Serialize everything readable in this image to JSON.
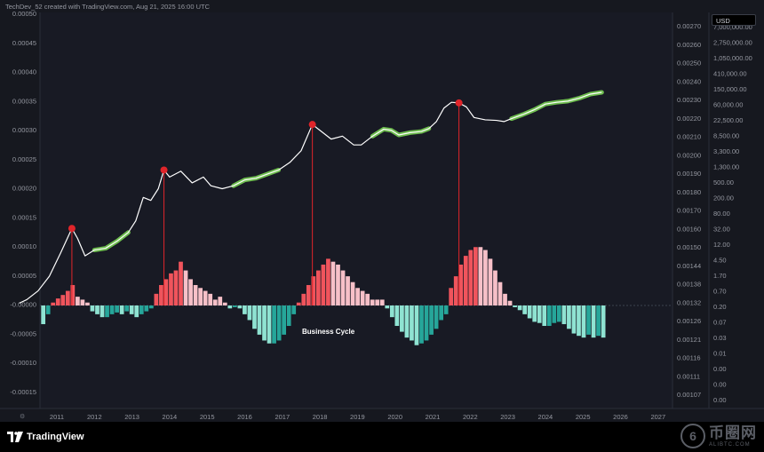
{
  "header": {
    "created_text": "TechDev_52 created with TradingView.com, Aug 21, 2025 16:00 UTC"
  },
  "currency_tag": "USD",
  "footer": {
    "logo_text": "TradingView",
    "watermark_main": "币圈网",
    "watermark_sub": "ALIBTC.COM"
  },
  "chart_data": {
    "type": "bar",
    "x_ticks": [
      "2011",
      "2012",
      "2013",
      "2014",
      "2015",
      "2016",
      "2017",
      "2018",
      "2019",
      "2020",
      "2021",
      "2022",
      "2023",
      "2024",
      "2025",
      "2026",
      "2027"
    ],
    "left_axis": {
      "labels": [
        "0.00050",
        "0.00045",
        "0.00040",
        "0.00035",
        "0.00030",
        "0.00025",
        "0.00020",
        "0.00015",
        "0.00010",
        "0.00005",
        "-0.00000",
        "-0.00005",
        "-0.00010",
        "-0.00015"
      ],
      "ylim": [
        -0.0002,
        0.0005
      ]
    },
    "mid_axis": {
      "labels": [
        "0.00270",
        "0.00260",
        "0.00250",
        "0.00240",
        "0.00230",
        "0.00220",
        "0.00210",
        "0.00200",
        "0.00190",
        "0.00180",
        "0.00170",
        "0.00160",
        "0.00150",
        "0.00144",
        "0.00138",
        "0.00132",
        "0.00126",
        "0.00121",
        "0.00116",
        "0.00111",
        "0.00107"
      ]
    },
    "right_axis": {
      "labels": [
        "7,000,000.00",
        "2,750,000.00",
        "1,050,000.00",
        "410,000.00",
        "150,000.00",
        "60,000.00",
        "22,500.00",
        "8,500.00",
        "3,300.00",
        "1,300.00",
        "500.00",
        "200.00",
        "80.00",
        "32.00",
        "12.00",
        "4.50",
        "1.70",
        "0.70",
        "0.20",
        "0.07",
        "0.03",
        "0.01",
        "0.00",
        "0.00",
        "0.00"
      ]
    },
    "annotation": "Business Cycle",
    "colors": {
      "peak_bar": "#f0545c",
      "post_peak_bar": "#f7c0c8",
      "negative_bar": "#26a69a",
      "negative_light": "#8fe3d2",
      "price_line": "#ffffff",
      "highlight": "#7ed957",
      "peak_marker": "#e0252a"
    },
    "histogram": [
      -3.2e-05,
      -1.5e-05,
      5e-06,
      1.2e-05,
      1.8e-05,
      2.5e-05,
      3.5e-05,
      1.5e-05,
      1e-05,
      5e-06,
      -1e-05,
      -1.5e-05,
      -2e-05,
      -2e-05,
      -1.5e-05,
      -1.2e-05,
      -1.5e-05,
      -1e-05,
      -1.5e-05,
      -2e-05,
      -1.5e-05,
      -1e-05,
      -5e-06,
      2e-05,
      3.5e-05,
      4.5e-05,
      5.5e-05,
      6e-05,
      7.5e-05,
      6e-05,
      4.5e-05,
      3.5e-05,
      3e-05,
      2.5e-05,
      2e-05,
      1e-05,
      1.5e-05,
      5e-06,
      -5e-06,
      -3e-06,
      -5e-06,
      -1.5e-05,
      -2.5e-05,
      -4e-05,
      -5e-05,
      -6e-05,
      -6.5e-05,
      -6.5e-05,
      -6e-05,
      -5e-05,
      -3.5e-05,
      -1.5e-05,
      5e-06,
      2e-05,
      3.5e-05,
      5e-05,
      6e-05,
      7e-05,
      8e-05,
      7.5e-05,
      7e-05,
      6e-05,
      5e-05,
      4e-05,
      3e-05,
      2.5e-05,
      2e-05,
      1e-05,
      1e-05,
      1e-05,
      -5e-06,
      -2e-05,
      -3.5e-05,
      -4.5e-05,
      -5.5e-05,
      -6e-05,
      -6.8e-05,
      -6.5e-05,
      -6e-05,
      -5e-05,
      -4e-05,
      -2.5e-05,
      -1.5e-05,
      3e-05,
      5e-05,
      7e-05,
      8.5e-05,
      9.5e-05,
      0.0001,
      0.0001,
      9.5e-05,
      8e-05,
      6e-05,
      4e-05,
      2e-05,
      8e-06,
      -3e-06,
      -8e-06,
      -1.5e-05,
      -2.2e-05,
      -2.8e-05,
      -3e-05,
      -3.5e-05,
      -3.5e-05,
      -3e-05,
      -2.8e-05,
      -3.2e-05,
      -4e-05,
      -4.8e-05,
      -5.2e-05,
      -5.5e-05,
      -5e-05,
      -5.5e-05,
      -5.2e-05,
      -5.5e-05
    ],
    "peak_markers": [
      {
        "year": 2011.4,
        "left_value": 0.000132
      },
      {
        "year": 2013.85,
        "left_value": 0.000232
      },
      {
        "year": 2017.8,
        "left_value": 0.00031
      },
      {
        "year": 2021.7,
        "left_value": 0.000347
      }
    ],
    "price_series": [
      [
        2010.0,
        4e-06
      ],
      [
        2010.2,
        1e-05
      ],
      [
        2010.5,
        2.5e-05
      ],
      [
        2010.8,
        5e-05
      ],
      [
        2011.1,
        9e-05
      ],
      [
        2011.4,
        0.000132
      ],
      [
        2011.55,
        0.000115
      ],
      [
        2011.75,
        8.5e-05
      ],
      [
        2012.0,
        9.5e-05
      ],
      [
        2012.3,
        9.8e-05
      ],
      [
        2012.6,
        0.00011
      ],
      [
        2012.9,
        0.000125
      ],
      [
        2013.1,
        0.000145
      ],
      [
        2013.3,
        0.000185
      ],
      [
        2013.5,
        0.00018
      ],
      [
        2013.7,
        0.0002
      ],
      [
        2013.85,
        0.000232
      ],
      [
        2014.0,
        0.00022
      ],
      [
        2014.3,
        0.00023
      ],
      [
        2014.6,
        0.00021
      ],
      [
        2014.9,
        0.00022
      ],
      [
        2015.1,
        0.000205
      ],
      [
        2015.4,
        0.0002
      ],
      [
        2015.7,
        0.000205
      ],
      [
        2016.0,
        0.000215
      ],
      [
        2016.3,
        0.000218
      ],
      [
        2016.6,
        0.000225
      ],
      [
        2016.9,
        0.000232
      ],
      [
        2017.2,
        0.000245
      ],
      [
        2017.5,
        0.000265
      ],
      [
        2017.8,
        0.00031
      ],
      [
        2018.0,
        0.0003
      ],
      [
        2018.3,
        0.000285
      ],
      [
        2018.6,
        0.00029
      ],
      [
        2018.9,
        0.000275
      ],
      [
        2019.1,
        0.000275
      ],
      [
        2019.4,
        0.00029
      ],
      [
        2019.7,
        0.000302
      ],
      [
        2019.9,
        0.0003
      ],
      [
        2020.1,
        0.000292
      ],
      [
        2020.4,
        0.000296
      ],
      [
        2020.7,
        0.000298
      ],
      [
        2020.9,
        0.000303
      ],
      [
        2021.1,
        0.000315
      ],
      [
        2021.3,
        0.000338
      ],
      [
        2021.5,
        0.000348
      ],
      [
        2021.7,
        0.000347
      ],
      [
        2021.9,
        0.00034
      ],
      [
        2022.1,
        0.000322
      ],
      [
        2022.4,
        0.000318
      ],
      [
        2022.7,
        0.000317
      ],
      [
        2022.9,
        0.000315
      ],
      [
        2023.1,
        0.00032
      ],
      [
        2023.4,
        0.000327
      ],
      [
        2023.7,
        0.000335
      ],
      [
        2024.0,
        0.000345
      ],
      [
        2024.3,
        0.000348
      ],
      [
        2024.6,
        0.00035
      ],
      [
        2024.9,
        0.000355
      ],
      [
        2025.2,
        0.000362
      ],
      [
        2025.5,
        0.000365
      ]
    ],
    "highlight_segments": [
      [
        2011.8,
        2012.9
      ],
      [
        2015.5,
        2016.95
      ],
      [
        2019.3,
        2020.9
      ],
      [
        2023.0,
        2025.55
      ]
    ],
    "grid": false,
    "legend": "none"
  }
}
